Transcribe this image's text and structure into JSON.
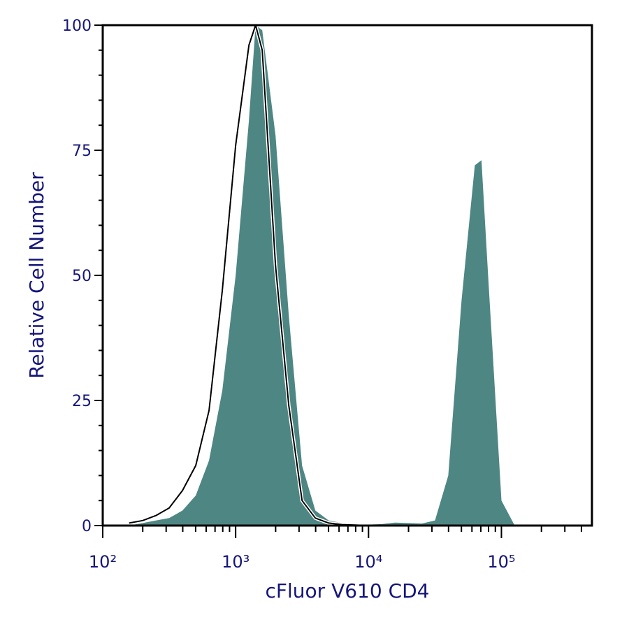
{
  "chart_data": {
    "type": "histogram-overlay",
    "xlabel": "cFluor V610 CD4",
    "ylabel": "Relative Cell Number",
    "xscale": "log",
    "x": [
      158,
      200,
      251,
      316,
      398,
      501,
      631,
      794,
      1000,
      1259,
      1413,
      1585,
      1995,
      2512,
      3162,
      3981,
      5012,
      6310,
      7943,
      10000,
      12589,
      15849,
      19953,
      25119,
      31623,
      39811,
      50119,
      63096,
      70795,
      79433,
      100000,
      125893,
      158489
    ],
    "series": [
      {
        "color": "#4e8683",
        "filled": true,
        "values": [
          0,
          0.5,
          1,
          1.5,
          3,
          6,
          13,
          27,
          50,
          81,
          100,
          99,
          78,
          42,
          12,
          3,
          1,
          0.5,
          0.3,
          0.2,
          0.3,
          0.6,
          0.5,
          0.4,
          1,
          10,
          45,
          72,
          73,
          50,
          5,
          0,
          0
        ]
      },
      {
        "color": "#000000",
        "filled": false,
        "values": [
          0.5,
          1,
          2,
          3.5,
          7,
          12,
          23,
          47,
          76,
          96,
          100,
          95,
          52,
          24,
          5,
          1.5,
          0.5,
          0.2,
          0.1,
          0,
          null,
          null,
          null,
          null,
          null,
          null,
          null,
          null,
          null,
          null,
          null,
          null,
          null
        ]
      }
    ],
    "xlim": [
      100,
      480000
    ],
    "ylim": [
      0,
      100
    ],
    "xticks": [
      {
        "value": 100,
        "label": "10²"
      },
      {
        "value": 1000,
        "label": "10³"
      },
      {
        "value": 10000,
        "label": "10⁴"
      },
      {
        "value": 100000,
        "label": "10⁵"
      }
    ],
    "xminorticks": [
      200,
      300,
      400,
      500,
      600,
      700,
      800,
      900,
      2000,
      3000,
      4000,
      5000,
      6000,
      7000,
      8000,
      9000,
      20000,
      30000,
      40000,
      50000,
      60000,
      70000,
      80000,
      90000,
      200000,
      300000,
      400000
    ],
    "yticks": [
      0,
      25,
      50,
      75,
      100
    ],
    "yminorticks": [
      5,
      10,
      15,
      20,
      30,
      35,
      40,
      45,
      55,
      60,
      65,
      70,
      80,
      85,
      90,
      95
    ]
  }
}
